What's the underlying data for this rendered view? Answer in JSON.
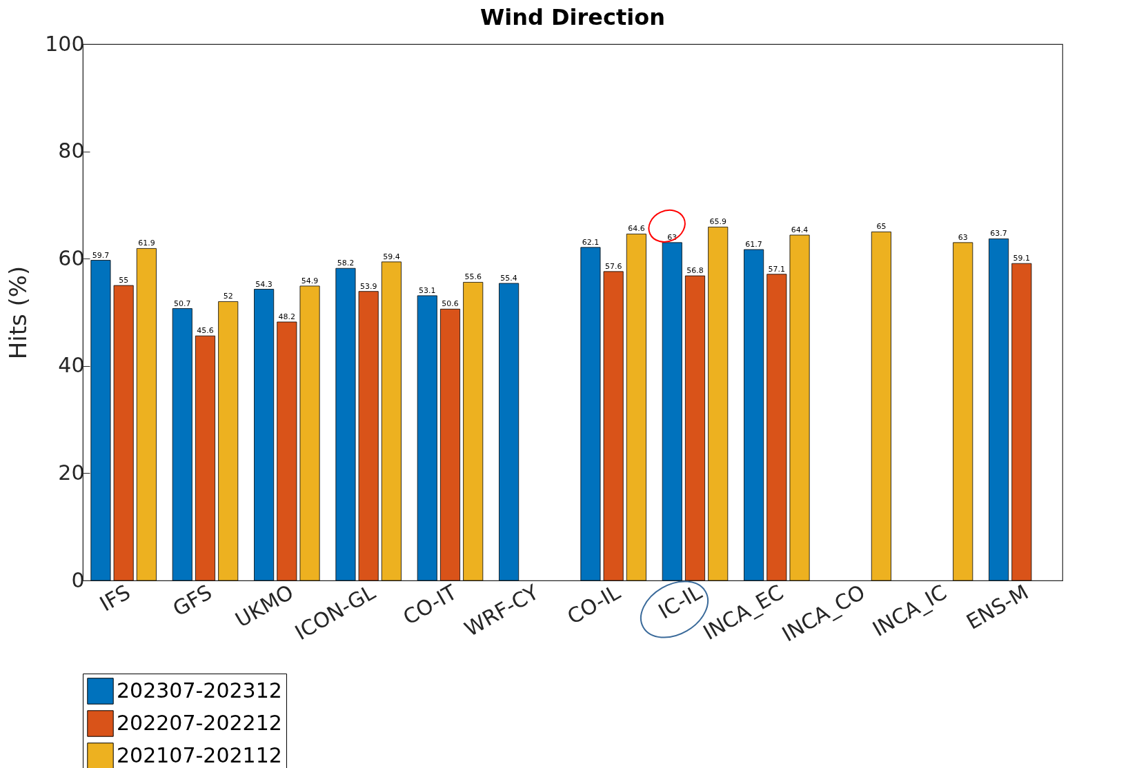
{
  "chart_data": {
    "type": "bar",
    "title": "Wind Direction",
    "ylabel": "Hits (%)",
    "categories": [
      "IFS",
      "GFS",
      "UKMO",
      "ICON-GL",
      "CO-IT",
      "WRF-CY",
      "CO-IL",
      "IC-IL",
      "INCA_EC",
      "INCA_CO",
      "INCA_IC",
      "ENS-M"
    ],
    "series": [
      {
        "name": "202307-202312",
        "color": "#0072bd",
        "values": [
          59.7,
          50.7,
          54.3,
          58.2,
          53.1,
          55.4,
          62.1,
          63,
          61.7,
          null,
          null,
          63.7
        ]
      },
      {
        "name": "202207-202212",
        "color": "#d95319",
        "values": [
          55,
          45.6,
          48.2,
          53.9,
          50.6,
          null,
          57.6,
          56.8,
          57.1,
          null,
          null,
          59.1
        ]
      },
      {
        "name": "202107-202112",
        "color": "#edb120",
        "values": [
          61.9,
          52,
          54.9,
          59.4,
          55.6,
          null,
          64.6,
          65.9,
          64.4,
          65,
          63,
          null
        ]
      }
    ],
    "ylim": [
      0,
      100
    ],
    "yticks": [
      0,
      20,
      40,
      60,
      80,
      100
    ],
    "data_labels": true,
    "legend": "bottom",
    "grid": false
  }
}
